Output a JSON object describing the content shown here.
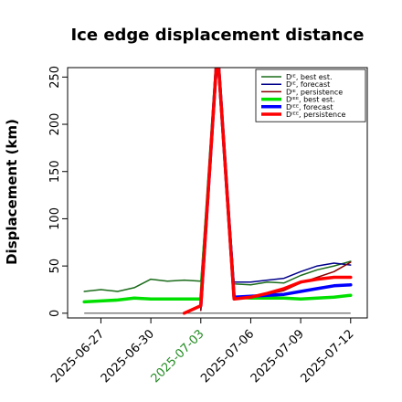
{
  "chart_data": {
    "type": "line",
    "title": "Ice edge displacement distance",
    "xlabel": "",
    "ylabel": "Displacement (km)",
    "xlim": [
      "2025-06-25",
      "2025-07-13"
    ],
    "ylim": [
      -5,
      260
    ],
    "yticks": [
      0,
      50,
      100,
      150,
      200,
      250
    ],
    "xticks": [
      {
        "date": "2025-06-27",
        "label": "2025-06-27",
        "color": "#000000"
      },
      {
        "date": "2025-06-30",
        "label": "2025-06-30",
        "color": "#000000"
      },
      {
        "date": "2025-07-03",
        "label": "2025-07-03",
        "color": "#228B22"
      },
      {
        "date": "2025-07-06",
        "label": "2025-07-06",
        "color": "#000000"
      },
      {
        "date": "2025-07-09",
        "label": "2025-07-09",
        "color": "#000000"
      },
      {
        "date": "2025-07-12",
        "label": "2025-07-12",
        "color": "#000000"
      }
    ],
    "legend": "top-right",
    "series": [
      {
        "name": "Dᴵᴱ, best est.",
        "color": "#1a6b1a",
        "width": 1.5,
        "points": [
          [
            "2025-06-26",
            23
          ],
          [
            "2025-06-27",
            25
          ],
          [
            "2025-06-28",
            23
          ],
          [
            "2025-06-29",
            27
          ],
          [
            "2025-06-30",
            36
          ],
          [
            "2025-07-01",
            34
          ],
          [
            "2025-07-02",
            35
          ],
          [
            "2025-07-03",
            34
          ],
          [
            "2025-07-04",
            280
          ],
          [
            "2025-07-05",
            31
          ],
          [
            "2025-07-06",
            30
          ],
          [
            "2025-07-07",
            33
          ],
          [
            "2025-07-08",
            32
          ],
          [
            "2025-07-09",
            40
          ],
          [
            "2025-07-10",
            46
          ],
          [
            "2025-07-11",
            50
          ],
          [
            "2025-07-12",
            55
          ]
        ]
      },
      {
        "name": "Dᴵᴱ, forecast",
        "color": "#00008b",
        "width": 1.5,
        "points": [
          [
            "2025-07-03",
            3
          ],
          [
            "2025-07-04",
            280
          ],
          [
            "2025-07-05",
            33
          ],
          [
            "2025-07-06",
            33
          ],
          [
            "2025-07-07",
            35
          ],
          [
            "2025-07-08",
            37
          ],
          [
            "2025-07-09",
            44
          ],
          [
            "2025-07-10",
            50
          ],
          [
            "2025-07-11",
            53
          ],
          [
            "2025-07-12",
            51
          ]
        ]
      },
      {
        "name": "Dᴵᴱ, persistence",
        "color": "#8b0000",
        "width": 1.5,
        "points": [
          [
            "2025-07-03",
            3
          ],
          [
            "2025-07-04",
            280
          ],
          [
            "2025-07-05",
            15
          ],
          [
            "2025-07-06",
            16
          ],
          [
            "2025-07-07",
            20
          ],
          [
            "2025-07-08",
            24
          ],
          [
            "2025-07-09",
            32
          ],
          [
            "2025-07-10",
            38
          ],
          [
            "2025-07-11",
            44
          ],
          [
            "2025-07-12",
            54
          ]
        ]
      },
      {
        "name": "Dᴵᴱᴱ, best est.",
        "color": "#00e000",
        "width": 3.5,
        "points": [
          [
            "2025-06-26",
            12
          ],
          [
            "2025-06-27",
            13
          ],
          [
            "2025-06-28",
            14
          ],
          [
            "2025-06-29",
            16
          ],
          [
            "2025-06-30",
            15
          ],
          [
            "2025-07-01",
            15
          ],
          [
            "2025-07-02",
            15
          ],
          [
            "2025-07-03",
            15
          ],
          [
            "2025-07-04",
            280
          ],
          [
            "2025-07-05",
            17
          ],
          [
            "2025-07-06",
            16
          ],
          [
            "2025-07-07",
            16
          ],
          [
            "2025-07-08",
            16
          ],
          [
            "2025-07-09",
            15
          ],
          [
            "2025-07-10",
            16
          ],
          [
            "2025-07-11",
            17
          ],
          [
            "2025-07-12",
            19
          ]
        ]
      },
      {
        "name": "Dᴵᴱᴱ, forecast",
        "color": "#0000ff",
        "width": 3.5,
        "points": [
          [
            "2025-07-03",
            8
          ],
          [
            "2025-07-04",
            280
          ],
          [
            "2025-07-05",
            17
          ],
          [
            "2025-07-06",
            18
          ],
          [
            "2025-07-07",
            19
          ],
          [
            "2025-07-08",
            20
          ],
          [
            "2025-07-09",
            23
          ],
          [
            "2025-07-10",
            26
          ],
          [
            "2025-07-11",
            29
          ],
          [
            "2025-07-12",
            30
          ]
        ]
      },
      {
        "name": "Dᴵᴱᴱ, persistence",
        "color": "#ff0000",
        "width": 3.5,
        "points": [
          [
            "2025-07-02",
            0
          ],
          [
            "2025-07-03",
            8
          ],
          [
            "2025-07-04",
            280
          ],
          [
            "2025-07-05",
            15
          ],
          [
            "2025-07-06",
            17
          ],
          [
            "2025-07-07",
            21
          ],
          [
            "2025-07-08",
            26
          ],
          [
            "2025-07-09",
            33
          ],
          [
            "2025-07-10",
            36
          ],
          [
            "2025-07-11",
            38
          ],
          [
            "2025-07-12",
            38
          ]
        ]
      }
    ],
    "zero_line": {
      "start": "2025-06-26",
      "end": "2025-07-12",
      "value": 0,
      "color": "#555555"
    }
  }
}
